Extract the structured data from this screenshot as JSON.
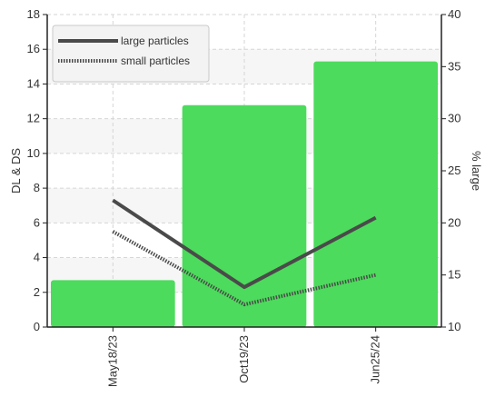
{
  "chart_data": {
    "type": "bar",
    "title": "",
    "categories": [
      "May18/23",
      "Oct19/23",
      "Jun25/24"
    ],
    "left_axis": {
      "label": "DL & DS",
      "min": 0,
      "max": 18,
      "ticks": [
        0,
        2,
        4,
        6,
        8,
        10,
        12,
        14,
        16,
        18
      ]
    },
    "right_axis": {
      "label": "% large",
      "min": 10,
      "max": 40,
      "ticks": [
        10,
        15,
        20,
        25,
        30,
        35,
        40
      ]
    },
    "bars": {
      "axis": "right",
      "color": "#4cdb5c",
      "values": [
        14.5,
        31.3,
        35.5
      ]
    },
    "series": [
      {
        "name": "large particles",
        "axis": "left",
        "style": "solid",
        "color": "#4a4a4a",
        "values": [
          7.3,
          2.3,
          6.3
        ]
      },
      {
        "name": "small particles",
        "axis": "left",
        "style": "dotted",
        "color": "#4a4a4a",
        "values": [
          5.5,
          1.3,
          3.0
        ]
      }
    ],
    "legend_position": "top-left",
    "grid": true
  }
}
